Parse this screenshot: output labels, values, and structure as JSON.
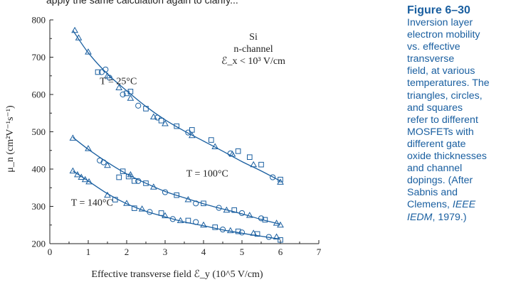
{
  "top_text": "apply the same calculation again to clarify...",
  "caption": {
    "title": "Figure 6–30",
    "lines": [
      "Inversion layer",
      "electron mobility",
      "vs. effective",
      "transverse",
      "field, at various",
      "temperatures. The",
      "triangles, circles,",
      "and squares",
      "refer to different",
      "MOSFETs with",
      "different gate",
      "oxide thicknesses",
      "and channel",
      "dopings. (After",
      "Sabnis and",
      "Clemens, IEEE",
      "IEDM, 1979.)"
    ]
  },
  "colors": {
    "curve": "#1a5fa0",
    "marker": "#1a5fa0",
    "axis": "#222222",
    "caption": "#1a5fa0"
  },
  "chart_data": {
    "type": "scatter",
    "title": "",
    "xlabel": "Effective transverse field ℰ_y (10^5 V/cm)",
    "ylabel": "μ_n (cm²V⁻¹s⁻¹)",
    "xlim": [
      0,
      7
    ],
    "ylim": [
      200,
      800
    ],
    "xticks": [
      "0",
      "1",
      "2",
      "3",
      "4",
      "5",
      "6",
      "7"
    ],
    "yticks": [
      "200",
      "300",
      "400",
      "500",
      "600",
      "700",
      "800"
    ],
    "annotation": [
      "Si",
      "n-channel",
      "ℰ_x < 10³ V/cm"
    ],
    "series": [
      {
        "name": "T = 25°C",
        "label_pos": [
          1.3,
          628
        ],
        "curve": [
          [
            0.6,
            772
          ],
          [
            1.0,
            712
          ],
          [
            1.5,
            655
          ],
          [
            2.0,
            610
          ],
          [
            2.5,
            568
          ],
          [
            3.0,
            532
          ],
          [
            3.5,
            502
          ],
          [
            4.0,
            475
          ],
          [
            4.5,
            448
          ],
          [
            5.0,
            420
          ],
          [
            5.5,
            395
          ],
          [
            6.0,
            368
          ]
        ],
        "triangles": [
          [
            0.65,
            772
          ],
          [
            0.75,
            752
          ],
          [
            1.0,
            714
          ],
          [
            1.5,
            650
          ],
          [
            1.8,
            618
          ],
          [
            2.1,
            590
          ],
          [
            2.7,
            540
          ],
          [
            3.0,
            522
          ],
          [
            3.7,
            490
          ],
          [
            4.3,
            460
          ],
          [
            4.75,
            440
          ],
          [
            5.3,
            412
          ],
          [
            6.0,
            365
          ]
        ],
        "circles": [
          [
            1.35,
            660
          ],
          [
            1.45,
            667
          ],
          [
            1.55,
            645
          ],
          [
            1.9,
            600
          ],
          [
            2.3,
            570
          ],
          [
            2.8,
            538
          ],
          [
            3.6,
            498
          ],
          [
            4.7,
            442
          ],
          [
            5.8,
            378
          ]
        ],
        "squares": [
          [
            1.25,
            660
          ],
          [
            2.0,
            603
          ],
          [
            2.1,
            608
          ],
          [
            2.5,
            562
          ],
          [
            2.9,
            530
          ],
          [
            3.3,
            515
          ],
          [
            3.7,
            505
          ],
          [
            4.2,
            478
          ],
          [
            4.9,
            448
          ],
          [
            5.2,
            432
          ],
          [
            5.5,
            412
          ],
          [
            6.0,
            372
          ]
        ]
      },
      {
        "name": "T = 100°C",
        "label_pos": [
          3.55,
          380
        ],
        "curve": [
          [
            0.6,
            485
          ],
          [
            1.0,
            453
          ],
          [
            1.5,
            418
          ],
          [
            2.0,
            387
          ],
          [
            2.5,
            362
          ],
          [
            3.0,
            340
          ],
          [
            3.5,
            323
          ],
          [
            4.0,
            307
          ],
          [
            4.5,
            293
          ],
          [
            5.0,
            280
          ],
          [
            5.5,
            265
          ],
          [
            6.0,
            252
          ]
        ],
        "triangles": [
          [
            0.6,
            483
          ],
          [
            1.0,
            455
          ],
          [
            1.5,
            410
          ],
          [
            2.1,
            385
          ],
          [
            2.7,
            352
          ],
          [
            3.6,
            318
          ],
          [
            4.6,
            290
          ],
          [
            5.2,
            276
          ],
          [
            5.9,
            255
          ],
          [
            6.0,
            250
          ]
        ],
        "circles": [
          [
            1.3,
            423
          ],
          [
            1.4,
            418
          ],
          [
            2.3,
            368
          ],
          [
            3.0,
            338
          ],
          [
            3.8,
            308
          ],
          [
            4.4,
            296
          ],
          [
            5.0,
            282
          ],
          [
            5.5,
            268
          ]
        ],
        "squares": [
          [
            1.8,
            378
          ],
          [
            1.9,
            394
          ],
          [
            2.05,
            380
          ],
          [
            2.2,
            368
          ],
          [
            2.5,
            362
          ],
          [
            3.3,
            330
          ],
          [
            4.0,
            308
          ],
          [
            4.8,
            290
          ],
          [
            5.6,
            264
          ]
        ]
      },
      {
        "name": "T = 140°C",
        "label_pos": [
          0.55,
          302
        ],
        "curve": [
          [
            0.6,
            395
          ],
          [
            1.0,
            368
          ],
          [
            1.5,
            334
          ],
          [
            2.0,
            307
          ],
          [
            2.5,
            287
          ],
          [
            3.0,
            272
          ],
          [
            3.5,
            258
          ],
          [
            4.0,
            248
          ],
          [
            4.5,
            237
          ],
          [
            5.0,
            228
          ],
          [
            5.5,
            220
          ],
          [
            6.0,
            212
          ]
        ],
        "triangles": [
          [
            0.6,
            395
          ],
          [
            0.72,
            385
          ],
          [
            0.82,
            378
          ],
          [
            0.92,
            372
          ],
          [
            1.02,
            366
          ],
          [
            1.5,
            330
          ],
          [
            2.0,
            308
          ],
          [
            2.4,
            293
          ],
          [
            3.0,
            275
          ],
          [
            3.4,
            262
          ],
          [
            4.0,
            250
          ],
          [
            4.7,
            235
          ],
          [
            5.3,
            228
          ],
          [
            5.9,
            218
          ]
        ],
        "circles": [
          [
            2.6,
            285
          ],
          [
            3.2,
            266
          ],
          [
            3.8,
            258
          ],
          [
            4.5,
            238
          ],
          [
            5.0,
            230
          ],
          [
            5.7,
            218
          ]
        ],
        "squares": [
          [
            1.7,
            318
          ],
          [
            2.2,
            295
          ],
          [
            2.9,
            282
          ],
          [
            3.6,
            262
          ],
          [
            4.3,
            244
          ],
          [
            4.9,
            233
          ],
          [
            5.4,
            226
          ],
          [
            6.0,
            210
          ]
        ]
      }
    ]
  }
}
